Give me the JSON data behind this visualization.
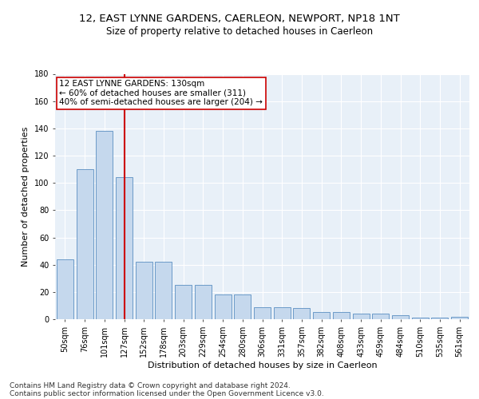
{
  "title": "12, EAST LYNNE GARDENS, CAERLEON, NEWPORT, NP18 1NT",
  "subtitle": "Size of property relative to detached houses in Caerleon",
  "xlabel": "Distribution of detached houses by size in Caerleon",
  "ylabel": "Number of detached properties",
  "categories": [
    "50sqm",
    "76sqm",
    "101sqm",
    "127sqm",
    "152sqm",
    "178sqm",
    "203sqm",
    "229sqm",
    "254sqm",
    "280sqm",
    "306sqm",
    "331sqm",
    "357sqm",
    "382sqm",
    "408sqm",
    "433sqm",
    "459sqm",
    "484sqm",
    "510sqm",
    "535sqm",
    "561sqm"
  ],
  "values": [
    44,
    110,
    138,
    104,
    42,
    42,
    25,
    25,
    18,
    18,
    9,
    9,
    8,
    5,
    5,
    4,
    4,
    3,
    1,
    1,
    2
  ],
  "bar_color": "#c5d8ed",
  "bar_edge_color": "#5a8fc2",
  "vline_color": "#cc0000",
  "vline_index": 3,
  "annotation_line1": "12 EAST LYNNE GARDENS: 130sqm",
  "annotation_line2": "← 60% of detached houses are smaller (311)",
  "annotation_line3": "40% of semi-detached houses are larger (204) →",
  "annotation_box_facecolor": "#ffffff",
  "annotation_box_edgecolor": "#cc0000",
  "ylim": [
    0,
    180
  ],
  "yticks": [
    0,
    20,
    40,
    60,
    80,
    100,
    120,
    140,
    160,
    180
  ],
  "bg_color": "#e8f0f8",
  "grid_color": "#ffffff",
  "title_fontsize": 9.5,
  "subtitle_fontsize": 8.5,
  "xlabel_fontsize": 8,
  "ylabel_fontsize": 8,
  "tick_fontsize": 7,
  "annotation_fontsize": 7.5,
  "footer_fontsize": 6.5,
  "footer_line1": "Contains HM Land Registry data © Crown copyright and database right 2024.",
  "footer_line2": "Contains public sector information licensed under the Open Government Licence v3.0."
}
